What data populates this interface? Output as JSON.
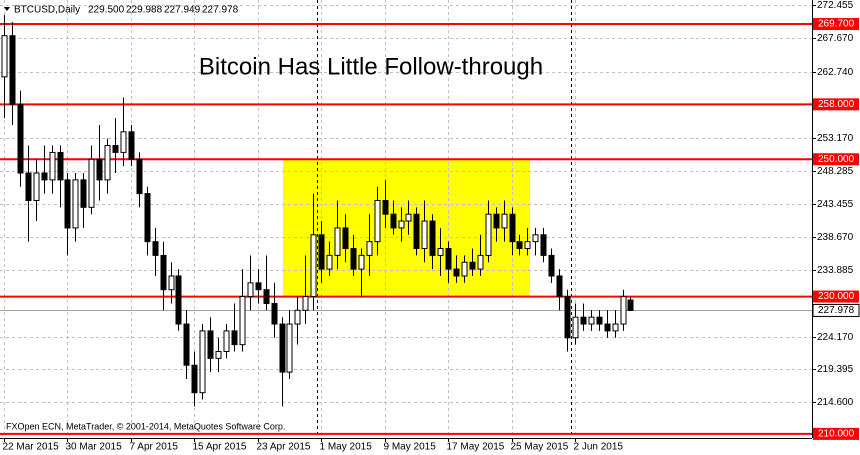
{
  "chart_data": {
    "type": "candlestick",
    "symbol": "BTCUSD,Daily",
    "header_values": [
      "229.500",
      "229.988",
      "227.949",
      "227.978"
    ],
    "title": "Bitcoin Has Little Follow-through",
    "footer": "FXOpen ECN, MetaTrader, © 2001-2014, MetaQuotes Software Corp.",
    "categories": [
      "22 Mar 2015",
      null,
      null,
      null,
      null,
      null,
      null,
      null,
      "30 Mar 2015",
      null,
      null,
      null,
      null,
      null,
      null,
      null,
      "7 Apr 2015",
      null,
      null,
      null,
      null,
      null,
      null,
      null,
      "15 Apr 2015",
      null,
      null,
      null,
      null,
      null,
      null,
      null,
      "23 Apr 2015",
      null,
      null,
      null,
      null,
      null,
      null,
      null,
      "1 May 2015",
      null,
      null,
      null,
      null,
      null,
      null,
      null,
      "9 May 2015",
      null,
      null,
      null,
      null,
      null,
      null,
      null,
      "17 May 2015",
      null,
      null,
      null,
      null,
      null,
      null,
      null,
      "25 May 2015",
      null,
      null,
      null,
      null,
      null,
      null,
      null,
      "2 Jun 2015",
      null,
      null,
      null,
      null,
      null,
      null,
      null
    ],
    "open": [
      262,
      268,
      258,
      248,
      244,
      248,
      247,
      251,
      247,
      240,
      247,
      243,
      250,
      247,
      252,
      251,
      254,
      250,
      245,
      238,
      236,
      231,
      233,
      226,
      220,
      216,
      225,
      221,
      222,
      225,
      223,
      230,
      232,
      231,
      229,
      226,
      219,
      226,
      228,
      230,
      239,
      234,
      236,
      240,
      237,
      234,
      236,
      238,
      244,
      242,
      240,
      241,
      242,
      237,
      241,
      236,
      237,
      234,
      233,
      235,
      234,
      236,
      242,
      240,
      242,
      238,
      237,
      238,
      239,
      236,
      233,
      230,
      224,
      227,
      226,
      227,
      226,
      225,
      226,
      229.5
    ],
    "high": [
      271,
      270,
      260,
      252,
      250,
      252,
      252,
      252,
      248,
      248,
      248,
      252,
      255,
      253,
      256,
      259,
      255,
      251,
      246,
      240,
      238,
      235,
      234,
      228,
      222,
      226,
      227,
      224,
      226,
      229,
      234,
      236,
      234,
      236,
      232,
      227,
      228,
      230,
      236,
      245,
      241,
      238,
      244,
      242,
      239,
      237,
      242,
      246,
      247,
      244,
      243,
      244,
      243,
      244,
      242,
      240,
      238,
      236,
      236,
      237,
      239,
      244,
      243,
      244,
      243,
      239,
      240,
      240,
      240,
      237,
      234,
      231,
      229,
      229,
      228,
      228,
      228,
      228,
      231,
      229.988
    ],
    "low": [
      256,
      255,
      246,
      238,
      241,
      245,
      245,
      243,
      236,
      238,
      240,
      242,
      244,
      245,
      248,
      249,
      249,
      243,
      236,
      233,
      228,
      229,
      225,
      218,
      214,
      215,
      219,
      219,
      221,
      222,
      222,
      228,
      229,
      228,
      224,
      214,
      218,
      223,
      226,
      228,
      232,
      233,
      234,
      235,
      233,
      230,
      233,
      236,
      240,
      239,
      238,
      239,
      236,
      235,
      234,
      233,
      232,
      232,
      232,
      233,
      233,
      235,
      238,
      238,
      236,
      236,
      236,
      236,
      235,
      232,
      228,
      222,
      223,
      225,
      225,
      225,
      224,
      224,
      225,
      227.949
    ],
    "close": [
      268,
      258,
      248,
      244,
      248,
      247,
      251,
      247,
      240,
      247,
      243,
      250,
      247,
      252,
      251,
      254,
      250,
      245,
      238,
      236,
      231,
      233,
      226,
      220,
      216,
      225,
      221,
      222,
      225,
      223,
      230,
      232,
      231,
      229,
      226,
      219,
      226,
      228,
      230,
      239,
      234,
      236,
      240,
      237,
      234,
      236,
      238,
      244,
      242,
      240,
      241,
      242,
      237,
      241,
      236,
      237,
      234,
      233,
      235,
      234,
      236,
      242,
      240,
      242,
      238,
      237,
      238,
      239,
      236,
      233,
      230,
      224,
      227,
      226,
      227,
      226,
      225,
      226,
      230,
      227.978
    ],
    "ylim": [
      209.4,
      273.2
    ],
    "yticks": [
      272.455,
      {
        "value": 267.67,
        "label": "267.670"
      },
      {
        "value": 262.74,
        "label": "262.740"
      },
      {
        "value": 253.17,
        "label": "253.170"
      },
      248.285,
      243.455,
      {
        "value": 238.67,
        "label": "238.670"
      },
      233.885,
      {
        "value": 224.17,
        "label": "224.170"
      },
      219.395,
      {
        "value": 214.6,
        "label": "214.600"
      }
    ],
    "levels": [
      {
        "value": 269.7,
        "label": "269.700"
      },
      {
        "value": 258,
        "label": "258.000"
      },
      {
        "value": 250,
        "label": "250.000"
      },
      {
        "value": 230,
        "label": "230.000"
      },
      {
        "value": 210,
        "label": "210.000"
      }
    ],
    "level_color": "#ff0000",
    "highlight_color": "#ffff00",
    "grid": true
  }
}
